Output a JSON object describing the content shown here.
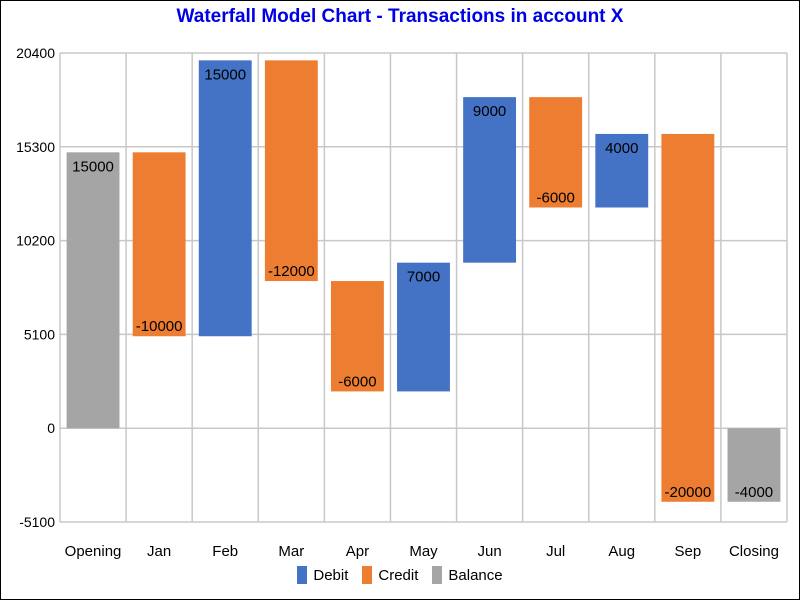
{
  "chart_data": {
    "type": "waterfall",
    "title": "Waterfall Model Chart - Transactions in account X",
    "ylim": [
      -5100,
      20400
    ],
    "yticks": [
      20400,
      15300,
      10200,
      5100,
      0,
      -5100
    ],
    "categories": [
      "Opening",
      "Jan",
      "Feb",
      "Mar",
      "Apr",
      "May",
      "Jun",
      "Jul",
      "Aug",
      "Sep",
      "Closing"
    ],
    "bars": [
      {
        "category": "Opening",
        "kind": "Balance",
        "start": 0,
        "end": 15000,
        "label": "15000"
      },
      {
        "category": "Jan",
        "kind": "Credit",
        "start": 15000,
        "end": 5000,
        "label": "-10000"
      },
      {
        "category": "Feb",
        "kind": "Debit",
        "start": 5000,
        "end": 20000,
        "label": "15000"
      },
      {
        "category": "Mar",
        "kind": "Credit",
        "start": 20000,
        "end": 8000,
        "label": "-12000"
      },
      {
        "category": "Apr",
        "kind": "Credit",
        "start": 8000,
        "end": 2000,
        "label": "-6000"
      },
      {
        "category": "May",
        "kind": "Debit",
        "start": 2000,
        "end": 9000,
        "label": "7000"
      },
      {
        "category": "Jun",
        "kind": "Debit",
        "start": 9000,
        "end": 18000,
        "label": "9000"
      },
      {
        "category": "Jul",
        "kind": "Credit",
        "start": 18000,
        "end": 12000,
        "label": "-6000"
      },
      {
        "category": "Aug",
        "kind": "Debit",
        "start": 12000,
        "end": 16000,
        "label": "4000"
      },
      {
        "category": "Sep",
        "kind": "Credit",
        "start": 16000,
        "end": -4000,
        "label": "-20000"
      },
      {
        "category": "Closing",
        "kind": "Balance",
        "start": 0,
        "end": -4000,
        "label": "-4000"
      }
    ],
    "legend": [
      {
        "name": "Debit",
        "color": "#4472c4"
      },
      {
        "name": "Credit",
        "color": "#ed7d31"
      },
      {
        "name": "Balance",
        "color": "#a5a5a5"
      }
    ],
    "grid": true,
    "legend_position": "bottom"
  }
}
